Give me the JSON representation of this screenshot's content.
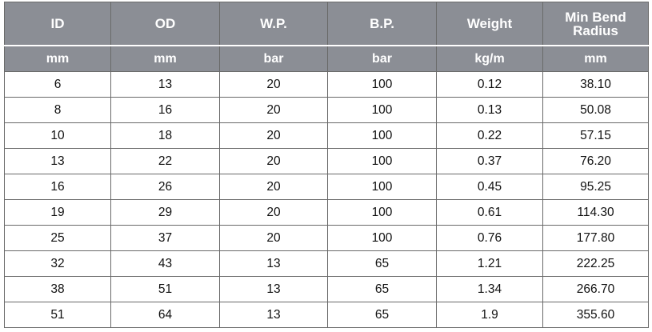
{
  "table": {
    "headers": [
      "ID",
      "OD",
      "W.P.",
      "B.P.",
      "Weight",
      "Min Bend Radius"
    ],
    "header_lines": {
      "min_bend_line1": "Min Bend",
      "min_bend_line2": "Radius"
    },
    "units": [
      "mm",
      "mm",
      "bar",
      "bar",
      "kg/m",
      "mm"
    ],
    "rows": [
      [
        "6",
        "13",
        "20",
        "100",
        "0.12",
        "38.10"
      ],
      [
        "8",
        "16",
        "20",
        "100",
        "0.13",
        "50.08"
      ],
      [
        "10",
        "18",
        "20",
        "100",
        "0.22",
        "57.15"
      ],
      [
        "13",
        "22",
        "20",
        "100",
        "0.37",
        "76.20"
      ],
      [
        "16",
        "26",
        "20",
        "100",
        "0.45",
        "95.25"
      ],
      [
        "19",
        "29",
        "20",
        "100",
        "0.61",
        "114.30"
      ],
      [
        "25",
        "37",
        "20",
        "100",
        "0.76",
        "177.80"
      ],
      [
        "32",
        "43",
        "13",
        "65",
        "1.21",
        "222.25"
      ],
      [
        "38",
        "51",
        "13",
        "65",
        "1.34",
        "266.70"
      ],
      [
        "51",
        "64",
        "13",
        "65",
        "1.9",
        "355.60"
      ]
    ]
  },
  "colors": {
    "header_bg": "#8b8e95",
    "header_text": "#ffffff",
    "border": "#6a6a6a"
  }
}
